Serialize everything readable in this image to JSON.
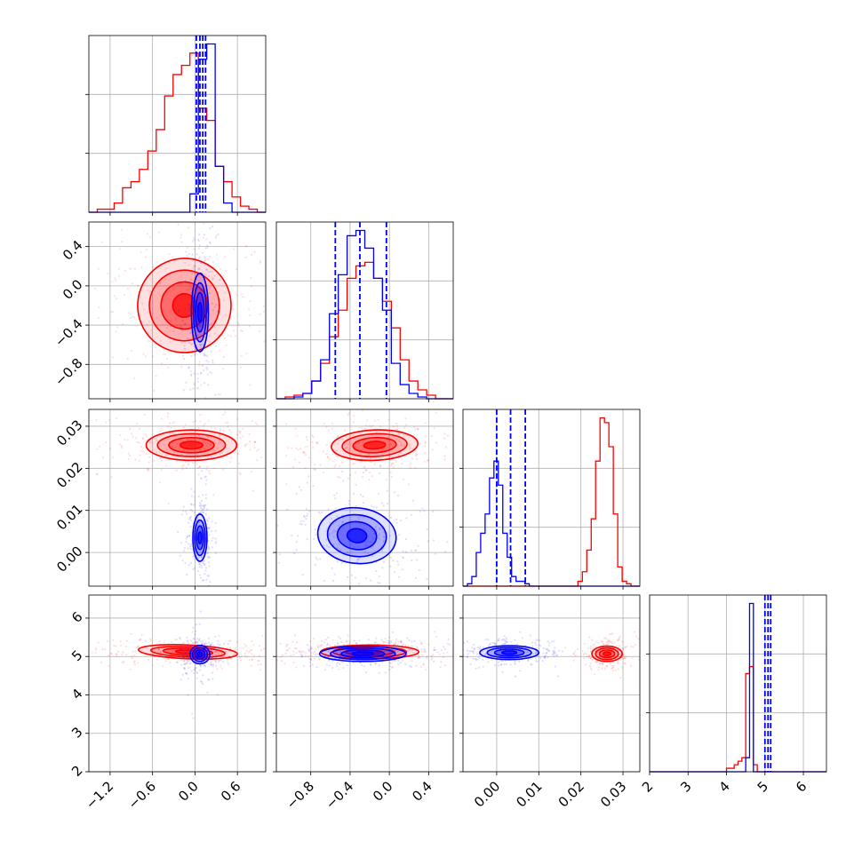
{
  "colors": {
    "red": "#ff0000",
    "blue": "#0000ff",
    "grid": "#b0b0b0",
    "axis": "#000000"
  },
  "params": [
    {
      "range": [
        -1.5,
        1.0
      ],
      "ticks": [
        -1.2,
        -0.6,
        0.0,
        0.6
      ],
      "tick_labels": [
        "−1.2",
        "−0.6",
        "0.0",
        "0.6"
      ]
    },
    {
      "range": [
        -1.15,
        0.65
      ],
      "ticks": [
        -0.8,
        -0.4,
        0.0,
        0.4
      ],
      "tick_labels": [
        "−0.8",
        "−0.4",
        "0.0",
        "0.4"
      ]
    },
    {
      "range": [
        -0.008,
        0.034
      ],
      "ticks": [
        0.0,
        0.01,
        0.02,
        0.03
      ],
      "tick_labels": [
        "0.00",
        "0.01",
        "0.02",
        "0.03"
      ]
    },
    {
      "range": [
        2.0,
        6.6
      ],
      "ticks": [
        2,
        3,
        4,
        5,
        6
      ],
      "tick_labels": [
        "2",
        "3",
        "4",
        "5",
        "6"
      ]
    }
  ],
  "chart_data": {
    "type": "corner",
    "series": [
      {
        "name": "",
        "color": "#ff0000",
        "hist": [
          {
            "edges": [
              -1.5,
              1.0
            ],
            "counts": [
              0,
              1,
              1,
              3,
              8,
              10,
              14,
              20,
              27,
              38,
              45,
              48,
              52,
              34,
              30,
              15,
              10,
              5,
              2,
              1,
              0
            ]
          },
          {
            "edges": [
              -1.15,
              0.65
            ],
            "counts": [
              0,
              1,
              2,
              3,
              10,
              20,
              35,
              50,
              68,
              75,
              77,
              68,
              55,
              40,
              22,
              10,
              5,
              2,
              0,
              0
            ]
          },
          {
            "edges": [
              -0.008,
              0.034
            ],
            "counts": [
              0,
              0,
              0,
              0,
              0,
              0,
              0,
              0,
              0,
              0,
              0,
              0,
              0,
              0,
              0,
              0,
              0,
              0,
              0,
              0,
              0,
              0,
              0,
              0,
              0,
              0,
              2,
              6,
              15,
              28,
              52,
              70,
              68,
              58,
              30,
              8,
              2,
              1,
              0,
              0
            ]
          },
          {
            "edges": [
              2.0,
              6.6
            ],
            "counts": [
              0,
              0,
              0,
              0,
              0,
              0,
              0,
              0,
              0,
              0,
              0,
              0,
              0,
              0,
              0,
              0,
              0,
              0,
              0,
              0,
              1,
              1,
              2,
              3,
              4,
              28,
              30,
              2,
              0,
              0,
              0,
              0,
              0,
              0,
              0,
              0,
              0,
              0,
              0,
              0,
              0,
              0,
              0,
              0,
              0,
              0
            ]
          }
        ],
        "blobs": [
          {
            "pair": [
              1,
              0
            ],
            "center": [
              -0.15,
              -0.2
            ],
            "sigma": [
              0.33,
              0.24
            ],
            "rho": -0.2
          },
          {
            "pair": [
              2,
              0
            ],
            "center": [
              -0.05,
              0.0255
            ],
            "sigma": [
              0.32,
              0.0018
            ],
            "rho": 0.0
          },
          {
            "pair": [
              2,
              1
            ],
            "center": [
              -0.15,
              0.0255
            ],
            "sigma": [
              0.22,
              0.0018
            ],
            "rho": 0.1
          },
          {
            "pair": [
              3,
              0
            ],
            "center": [
              -0.1,
              5.12
            ],
            "sigma": [
              0.35,
              0.09
            ],
            "rho": -0.1
          },
          {
            "pair": [
              3,
              1
            ],
            "center": [
              -0.2,
              5.12
            ],
            "sigma": [
              0.25,
              0.09
            ],
            "rho": 0.0
          },
          {
            "pair": [
              3,
              2
            ],
            "center": [
              0.0262,
              5.07
            ],
            "sigma": [
              0.0018,
              0.1
            ],
            "rho": 0.0
          }
        ]
      },
      {
        "name": "",
        "color": "#0000ff",
        "hist": [
          {
            "edges": [
              -1.5,
              1.0
            ],
            "counts": [
              0,
              0,
              0,
              0,
              0,
              0,
              0,
              0,
              0,
              0,
              0,
              0,
              6,
              50,
              55,
              15,
              3,
              0,
              0,
              0,
              0
            ]
          },
          {
            "edges": [
              -1.15,
              0.65
            ],
            "counts": [
              0,
              0,
              1,
              3,
              10,
              22,
              48,
              70,
              92,
              95,
              85,
              68,
              50,
              20,
              8,
              3,
              1,
              0,
              0,
              0
            ]
          },
          {
            "edges": [
              -0.008,
              0.034
            ],
            "counts": [
              0,
              1,
              4,
              14,
              22,
              30,
              45,
              52,
              42,
              22,
              12,
              4,
              2,
              2,
              1,
              0,
              0,
              0,
              0,
              0,
              0,
              0,
              0,
              0,
              0,
              0,
              0,
              0,
              0,
              0,
              0,
              0,
              0,
              0,
              0,
              0,
              0,
              0,
              0,
              0
            ]
          },
          {
            "edges": [
              2.0,
              6.6
            ],
            "counts": [
              0,
              0,
              0,
              0,
              0,
              0,
              0,
              0,
              0,
              0,
              0,
              0,
              0,
              0,
              0,
              0,
              0,
              0,
              0,
              0,
              0,
              0,
              0,
              0,
              0,
              4,
              48,
              0,
              0,
              0,
              0,
              0,
              0,
              0,
              0,
              0,
              0,
              0,
              0,
              0,
              0,
              0,
              0,
              0,
              0,
              0
            ]
          }
        ],
        "quantiles": [
          [
            0.02,
            0.07,
            0.11,
            0.15
          ],
          [
            -0.55,
            -0.3,
            -0.03
          ],
          [
            0.0,
            0.0033,
            0.0068
          ],
          [
            5.0,
            5.08,
            5.15
          ]
        ],
        "blobs": [
          {
            "pair": [
              1,
              0
            ],
            "center": [
              0.07,
              -0.27
            ],
            "sigma": [
              0.06,
              0.2
            ],
            "rho": 0.0
          },
          {
            "pair": [
              2,
              0
            ],
            "center": [
              0.07,
              0.0035
            ],
            "sigma": [
              0.05,
              0.0028
            ],
            "rho": 0.0
          },
          {
            "pair": [
              2,
              1
            ],
            "center": [
              -0.33,
              0.004
            ],
            "sigma": [
              0.2,
              0.0033
            ],
            "rho": -0.25
          },
          {
            "pair": [
              3,
              0
            ],
            "center": [
              0.07,
              5.05
            ],
            "sigma": [
              0.07,
              0.12
            ],
            "rho": 0.0
          },
          {
            "pair": [
              3,
              1
            ],
            "center": [
              -0.27,
              5.07
            ],
            "sigma": [
              0.22,
              0.1
            ],
            "rho": 0.0
          },
          {
            "pair": [
              3,
              2
            ],
            "center": [
              0.003,
              5.1
            ],
            "sigma": [
              0.0035,
              0.09
            ],
            "rho": 0.0
          }
        ]
      }
    ]
  }
}
